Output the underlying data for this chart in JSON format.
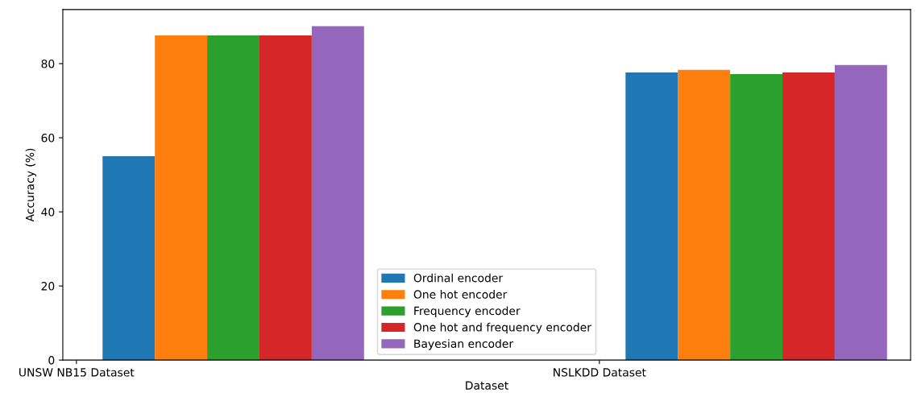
{
  "chart_data": {
    "type": "bar",
    "xlabel": "Dataset",
    "ylabel": "Accuracy (%)",
    "categories": [
      "UNSW NB15 Dataset",
      "NSLKDD Dataset"
    ],
    "series": [
      {
        "name": "Ordinal encoder",
        "color": "#1f77b4",
        "values": [
          55.0,
          77.6
        ]
      },
      {
        "name": "One hot encoder",
        "color": "#ff7f0e",
        "values": [
          87.6,
          78.3
        ]
      },
      {
        "name": "Frequency encoder",
        "color": "#2ca02c",
        "values": [
          87.6,
          77.2
        ]
      },
      {
        "name": "One hot and frequency encoder",
        "color": "#d62728",
        "values": [
          87.6,
          77.6
        ]
      },
      {
        "name": "Bayesian encoder",
        "color": "#9467bd",
        "values": [
          90.1,
          79.6
        ]
      }
    ],
    "ylim": [
      0,
      94.6
    ],
    "yticks": [
      0,
      20,
      40,
      60,
      80
    ],
    "grid": false,
    "legend": "bottom"
  }
}
